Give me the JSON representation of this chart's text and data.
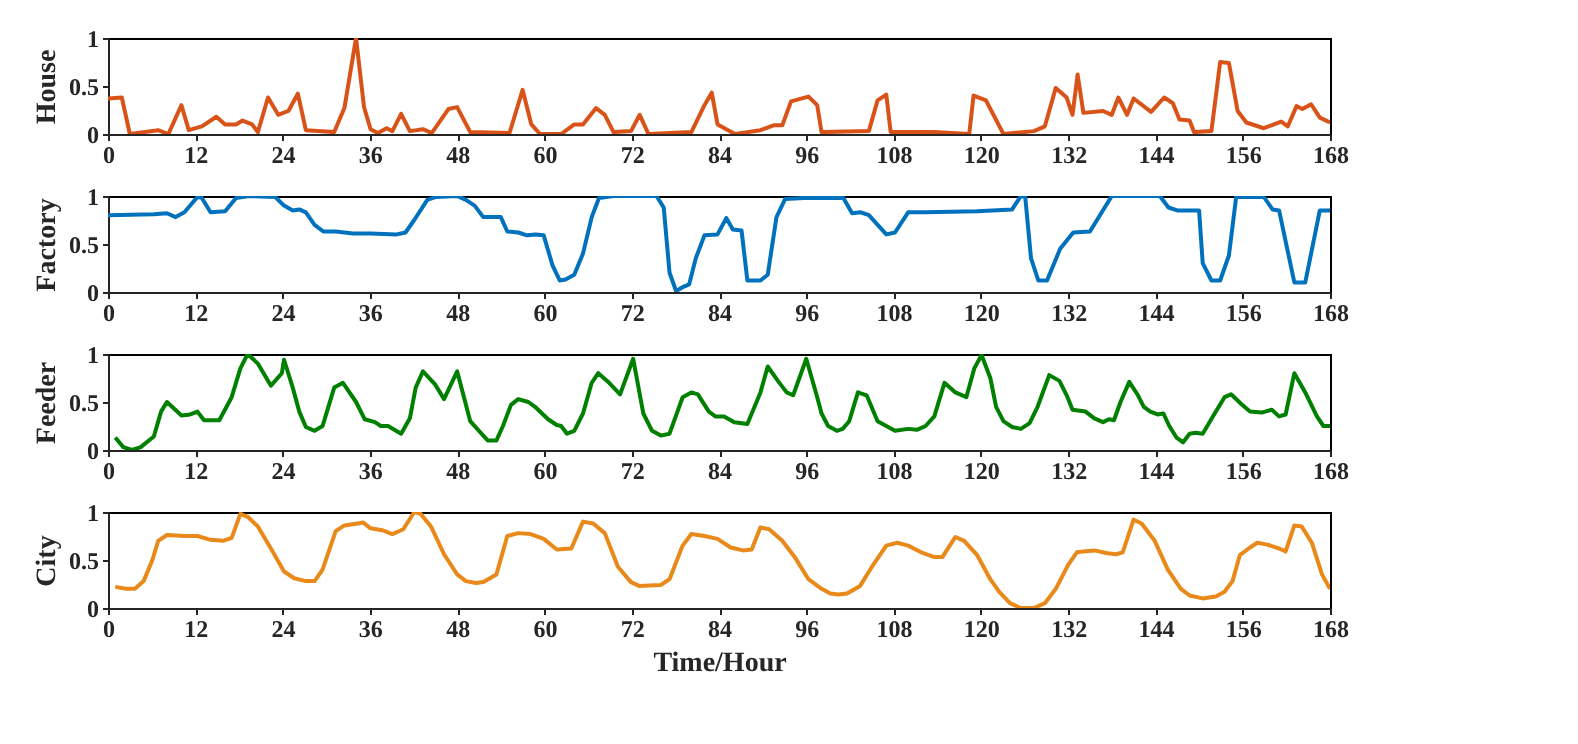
{
  "chart_data": [
    {
      "type": "line",
      "ylabel": "House",
      "xlim": [
        0,
        168
      ],
      "xticks": [
        0,
        12,
        24,
        36,
        48,
        60,
        72,
        84,
        96,
        108,
        120,
        132,
        144,
        156,
        168
      ],
      "ylim": [
        0,
        1
      ],
      "yticks": [
        0,
        0.5,
        1
      ],
      "grid": false,
      "series": [
        {
          "color": "#d95319",
          "x": [
            0,
            1.9,
            3.0,
            6.9,
            8.3,
            10.1,
            11.1,
            12.9,
            14.9,
            16.1,
            17.6,
            18.5,
            19.8,
            20.6,
            22.0,
            23.4,
            24.8,
            26.1,
            27.2,
            31.1,
            32.5,
            34.1,
            35.2,
            36.1,
            37.1,
            38.3,
            39.1,
            40.3,
            41.5,
            43.3,
            44.5,
            46.8,
            48.0,
            49.8,
            55.2,
            57.0,
            58.2,
            59.4,
            62.3,
            64.1,
            65.3,
            67.1,
            68.3,
            69.5,
            71.9,
            73.1,
            74.3,
            80.2,
            82.0,
            83.0,
            83.8,
            86.2,
            89.7,
            91.5,
            92.7,
            93.9,
            96.3,
            97.5,
            98.1,
            104.6,
            105.8,
            107.0,
            107.6,
            113.6,
            118.4,
            119.0,
            120.7,
            123.1,
            127.3,
            128.8,
            130.3,
            131.8,
            132.6,
            133.3,
            134.1,
            136.8,
            138.0,
            138.9,
            140.1,
            141.0,
            143.4,
            145.2,
            146.4,
            147.3,
            148.7,
            149.3,
            151.7,
            152.9,
            154.1,
            155.3,
            156.5,
            158.9,
            161.3,
            162.2,
            163.4,
            164.2,
            165.4,
            166.6,
            168
          ],
          "values": [
            0.37,
            0.38,
            0.0,
            0.04,
            0.0,
            0.3,
            0.04,
            0.08,
            0.18,
            0.1,
            0.1,
            0.14,
            0.1,
            0.02,
            0.38,
            0.2,
            0.24,
            0.42,
            0.04,
            0.02,
            0.27,
            1.0,
            0.28,
            0.05,
            0.01,
            0.06,
            0.03,
            0.21,
            0.03,
            0.05,
            0.01,
            0.26,
            0.28,
            0.02,
            0.01,
            0.46,
            0.1,
            0.0,
            0.0,
            0.1,
            0.1,
            0.27,
            0.2,
            0.02,
            0.03,
            0.2,
            0.0,
            0.02,
            0.3,
            0.43,
            0.1,
            0.0,
            0.04,
            0.09,
            0.09,
            0.34,
            0.39,
            0.3,
            0.02,
            0.03,
            0.35,
            0.41,
            0.02,
            0.02,
            0.0,
            0.4,
            0.35,
            0.0,
            0.03,
            0.08,
            0.48,
            0.38,
            0.2,
            0.62,
            0.22,
            0.24,
            0.2,
            0.38,
            0.2,
            0.37,
            0.23,
            0.38,
            0.32,
            0.15,
            0.14,
            0.02,
            0.03,
            0.75,
            0.74,
            0.24,
            0.12,
            0.06,
            0.13,
            0.08,
            0.29,
            0.26,
            0.31,
            0.17,
            0.12
          ]
        }
      ]
    },
    {
      "type": "line",
      "ylabel": "Factory",
      "xlim": [
        0,
        168
      ],
      "xticks": [
        0,
        12,
        24,
        36,
        48,
        60,
        72,
        84,
        96,
        108,
        120,
        132,
        144,
        156,
        168
      ],
      "ylim": [
        0,
        1
      ],
      "yticks": [
        0,
        0.5,
        1
      ],
      "grid": false,
      "series": [
        {
          "color": "#0072bd",
          "x": [
            0,
            6.3,
            8.1,
            9.3,
            10.5,
            12.3,
            12.9,
            14.1,
            16.1,
            17.6,
            19.4,
            23.0,
            24.2,
            25.4,
            26.3,
            27.2,
            28.4,
            29.6,
            31.3,
            33.7,
            36.1,
            39.7,
            40.9,
            42.1,
            43.9,
            45.1,
            48.0,
            49.2,
            50.4,
            51.6,
            54.0,
            54.9,
            56.4,
            57.6,
            58.8,
            59.9,
            61.1,
            62.1,
            62.9,
            64.1,
            65.3,
            66.5,
            67.5,
            69.5,
            75.4,
            76.4,
            77.2,
            78.1,
            79.0,
            79.9,
            80.8,
            82.0,
            83.8,
            85.0,
            85.9,
            87.1,
            87.9,
            89.7,
            90.7,
            91.9,
            93.1,
            95.7,
            101.1,
            102.3,
            103.5,
            104.6,
            107.0,
            108.2,
            110.0,
            112.4,
            119.5,
            124.3,
            125.5,
            126.1,
            126.9,
            127.9,
            129.1,
            130.9,
            132.7,
            135.0,
            138.0,
            144.6,
            145.8,
            147.0,
            150.0,
            150.5,
            151.7,
            152.9,
            154.1,
            155.1,
            158.9,
            160.1,
            161.0,
            162.2,
            163.1,
            164.6,
            166.6,
            168
          ],
          "values": [
            0.8,
            0.81,
            0.82,
            0.78,
            0.83,
            0.99,
            0.98,
            0.83,
            0.84,
            0.98,
            1.0,
            0.99,
            0.9,
            0.85,
            0.86,
            0.83,
            0.7,
            0.63,
            0.63,
            0.61,
            0.61,
            0.6,
            0.62,
            0.75,
            0.96,
            0.99,
            1.0,
            0.96,
            0.9,
            0.78,
            0.78,
            0.63,
            0.62,
            0.59,
            0.6,
            0.59,
            0.28,
            0.12,
            0.13,
            0.18,
            0.4,
            0.78,
            0.98,
            1.0,
            1.0,
            0.88,
            0.2,
            0.01,
            0.05,
            0.08,
            0.35,
            0.59,
            0.6,
            0.77,
            0.65,
            0.64,
            0.12,
            0.12,
            0.18,
            0.78,
            0.97,
            0.98,
            0.98,
            0.82,
            0.83,
            0.8,
            0.6,
            0.62,
            0.83,
            0.83,
            0.84,
            0.86,
            1.0,
            0.99,
            0.35,
            0.12,
            0.12,
            0.45,
            0.62,
            0.63,
            1.0,
            1.0,
            0.88,
            0.85,
            0.85,
            0.3,
            0.12,
            0.12,
            0.38,
            0.99,
            0.99,
            0.86,
            0.85,
            0.42,
            0.1,
            0.1,
            0.85,
            0.85
          ]
        }
      ]
    },
    {
      "type": "line",
      "ylabel": "Feeder",
      "xlim": [
        0,
        168
      ],
      "xticks": [
        0,
        12,
        24,
        36,
        48,
        60,
        72,
        84,
        96,
        108,
        120,
        132,
        144,
        156,
        168
      ],
      "ylim": [
        0,
        1
      ],
      "yticks": [
        0,
        0.5,
        1
      ],
      "grid": false,
      "series": [
        {
          "color": "#008000",
          "x": [
            1.0,
            2.1,
            3.3,
            4.5,
            6.3,
            7.3,
            8.1,
            10.1,
            11.3,
            12.3,
            13.2,
            15.3,
            17.0,
            18.2,
            19.2,
            20.6,
            22.4,
            23.9,
            24.2,
            25.4,
            26.3,
            27.2,
            28.4,
            29.5,
            30.1,
            31.1,
            32.3,
            34.1,
            35.3,
            36.7,
            37.5,
            38.5,
            40.3,
            41.5,
            42.3,
            43.3,
            45.0,
            46.2,
            48.0,
            49.8,
            51.0,
            52.2,
            53.4,
            54.3,
            55.4,
            56.4,
            57.8,
            58.7,
            60.5,
            61.7,
            62.3,
            63.1,
            64.1,
            65.3,
            66.5,
            67.4,
            68.9,
            70.4,
            72.2,
            73.6,
            74.8,
            76.0,
            77.2,
            79.0,
            80.2,
            81.1,
            82.6,
            83.5,
            84.7,
            86.1,
            87.9,
            89.7,
            90.7,
            92.1,
            93.3,
            94.2,
            96.0,
            97.5,
            98.1,
            99.0,
            100.2,
            101.0,
            101.9,
            103.1,
            104.3,
            105.8,
            107.0,
            108.2,
            110.0,
            111.2,
            112.4,
            113.6,
            115.0,
            116.5,
            118.0,
            119.1,
            120.1,
            121.3,
            122.1,
            123.1,
            124.3,
            125.5,
            126.7,
            127.8,
            129.4,
            130.8,
            131.8,
            132.6,
            134.4,
            135.6,
            136.8,
            137.6,
            138.3,
            139.2,
            140.4,
            141.6,
            142.4,
            143.3,
            144.3,
            145.1,
            145.9,
            146.9,
            147.8,
            148.7,
            149.5,
            150.5,
            151.9,
            153.5,
            154.4,
            155.8,
            157.0,
            158.6,
            160.0,
            161.0,
            161.9,
            163.1,
            164.6,
            166.2,
            167.1,
            168
          ],
          "values": [
            0.13,
            0.03,
            0.0,
            0.03,
            0.14,
            0.4,
            0.5,
            0.36,
            0.37,
            0.4,
            0.31,
            0.31,
            0.55,
            0.85,
            1.0,
            0.9,
            0.67,
            0.8,
            0.94,
            0.65,
            0.4,
            0.24,
            0.2,
            0.25,
            0.4,
            0.65,
            0.7,
            0.5,
            0.32,
            0.29,
            0.25,
            0.25,
            0.17,
            0.33,
            0.65,
            0.82,
            0.68,
            0.53,
            0.82,
            0.3,
            0.2,
            0.1,
            0.1,
            0.25,
            0.47,
            0.53,
            0.5,
            0.45,
            0.32,
            0.26,
            0.25,
            0.17,
            0.2,
            0.38,
            0.7,
            0.8,
            0.7,
            0.58,
            0.95,
            0.38,
            0.2,
            0.15,
            0.17,
            0.55,
            0.6,
            0.58,
            0.4,
            0.35,
            0.35,
            0.29,
            0.27,
            0.6,
            0.87,
            0.72,
            0.6,
            0.57,
            0.95,
            0.55,
            0.38,
            0.25,
            0.2,
            0.22,
            0.3,
            0.6,
            0.57,
            0.3,
            0.25,
            0.2,
            0.22,
            0.21,
            0.25,
            0.35,
            0.7,
            0.6,
            0.55,
            0.85,
            0.99,
            0.75,
            0.45,
            0.3,
            0.24,
            0.22,
            0.28,
            0.45,
            0.78,
            0.72,
            0.57,
            0.42,
            0.4,
            0.33,
            0.29,
            0.32,
            0.31,
            0.5,
            0.71,
            0.57,
            0.45,
            0.4,
            0.37,
            0.38,
            0.25,
            0.13,
            0.08,
            0.17,
            0.18,
            0.17,
            0.35,
            0.55,
            0.58,
            0.48,
            0.4,
            0.39,
            0.42,
            0.35,
            0.37,
            0.8,
            0.6,
            0.35,
            0.25,
            0.25
          ]
        }
      ]
    },
    {
      "type": "line",
      "ylabel": "City",
      "xlabel": "Time/Hour",
      "xlim": [
        0,
        168
      ],
      "xticks": [
        0,
        12,
        24,
        36,
        48,
        60,
        72,
        84,
        96,
        108,
        120,
        132,
        144,
        156,
        168
      ],
      "ylim": [
        0,
        1
      ],
      "yticks": [
        0,
        0.5,
        1
      ],
      "grid": false,
      "series": [
        {
          "color": "#e8891a",
          "x": [
            1.0,
            2.5,
            3.7,
            4.9,
            6.1,
            6.9,
            8.1,
            10.5,
            12.3,
            14.1,
            15.8,
            17.0,
            18.2,
            19.2,
            20.6,
            22.4,
            24.2,
            25.6,
            27.2,
            28.4,
            29.5,
            31.3,
            32.5,
            34.3,
            35.1,
            36.1,
            37.7,
            39.1,
            40.6,
            42.1,
            43.0,
            44.4,
            46.2,
            48.0,
            49.2,
            50.6,
            51.6,
            53.4,
            54.9,
            56.4,
            58.1,
            59.9,
            61.7,
            63.7,
            65.3,
            66.7,
            68.3,
            70.1,
            71.9,
            73.0,
            76.0,
            77.2,
            79.0,
            80.2,
            82.0,
            83.8,
            85.6,
            87.3,
            88.5,
            89.7,
            90.9,
            92.7,
            94.5,
            96.3,
            98.1,
            99.3,
            100.4,
            101.6,
            103.4,
            105.2,
            107.0,
            108.5,
            110.0,
            111.8,
            113.6,
            114.7,
            116.5,
            117.7,
            119.5,
            121.3,
            122.5,
            124.0,
            125.5,
            127.3,
            128.8,
            130.3,
            132.0,
            133.2,
            134.4,
            135.6,
            137.4,
            138.6,
            139.5,
            141.0,
            142.1,
            143.9,
            145.7,
            147.5,
            148.7,
            150.5,
            152.3,
            153.5,
            154.6,
            155.6,
            157.0,
            158.0,
            159.4,
            161.0,
            161.9,
            163.1,
            164.1,
            165.5,
            166.9,
            168
          ],
          "values": [
            0.22,
            0.2,
            0.2,
            0.28,
            0.5,
            0.7,
            0.76,
            0.75,
            0.75,
            0.71,
            0.7,
            0.73,
            0.98,
            0.95,
            0.85,
            0.62,
            0.38,
            0.31,
            0.28,
            0.28,
            0.4,
            0.8,
            0.86,
            0.88,
            0.89,
            0.83,
            0.81,
            0.77,
            0.82,
            1.0,
            0.98,
            0.85,
            0.56,
            0.35,
            0.28,
            0.26,
            0.27,
            0.35,
            0.75,
            0.78,
            0.77,
            0.72,
            0.61,
            0.62,
            0.9,
            0.88,
            0.78,
            0.43,
            0.27,
            0.23,
            0.24,
            0.3,
            0.65,
            0.77,
            0.75,
            0.72,
            0.63,
            0.6,
            0.61,
            0.84,
            0.82,
            0.7,
            0.52,
            0.3,
            0.2,
            0.15,
            0.14,
            0.15,
            0.23,
            0.45,
            0.65,
            0.68,
            0.65,
            0.58,
            0.53,
            0.53,
            0.74,
            0.7,
            0.55,
            0.3,
            0.17,
            0.05,
            0.0,
            0.0,
            0.05,
            0.2,
            0.45,
            0.58,
            0.59,
            0.6,
            0.57,
            0.56,
            0.58,
            0.92,
            0.88,
            0.7,
            0.4,
            0.2,
            0.13,
            0.1,
            0.12,
            0.17,
            0.28,
            0.55,
            0.63,
            0.68,
            0.66,
            0.62,
            0.59,
            0.86,
            0.85,
            0.68,
            0.35,
            0.2
          ]
        }
      ]
    }
  ]
}
